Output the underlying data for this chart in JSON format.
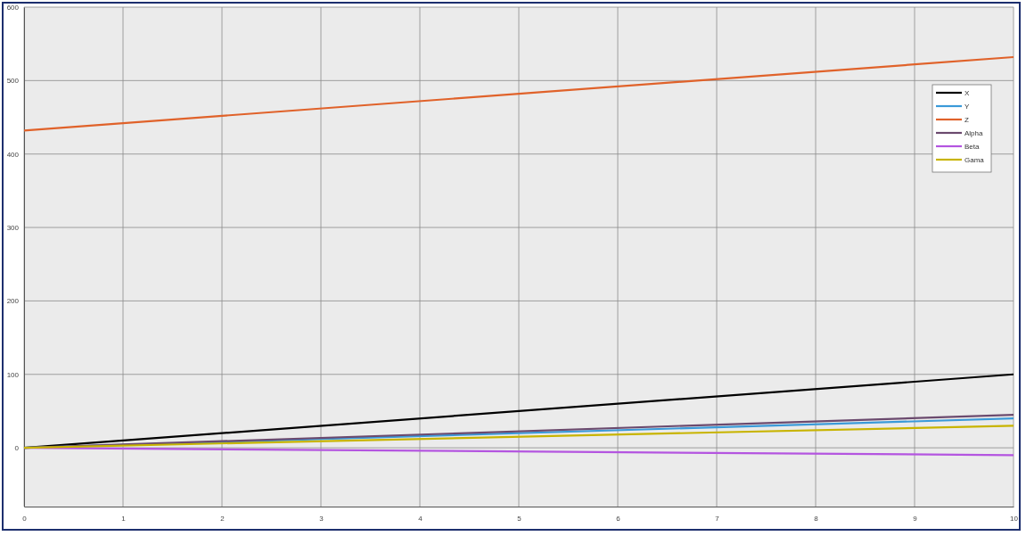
{
  "chart_data": {
    "type": "line",
    "x": [
      0,
      10
    ],
    "series": [
      {
        "name": "X",
        "color": "#000000",
        "values": [
          0,
          100
        ]
      },
      {
        "name": "Y",
        "color": "#3a9ad9",
        "values": [
          0,
          40
        ]
      },
      {
        "name": "Z",
        "color": "#e0622a",
        "values": [
          432,
          532
        ]
      },
      {
        "name": "Alpha",
        "color": "#6b4a6e",
        "values": [
          0,
          45
        ]
      },
      {
        "name": "Beta",
        "color": "#b455e0",
        "values": [
          0,
          -10
        ]
      },
      {
        "name": "Gama",
        "color": "#c8b400",
        "values": [
          0,
          30
        ]
      }
    ],
    "xlim": [
      0,
      10
    ],
    "xticks": [
      0,
      1,
      2,
      3,
      4,
      5,
      6,
      7,
      8,
      9,
      10
    ],
    "ylim": [
      -80,
      600
    ],
    "yticks": [
      0,
      100,
      200,
      300,
      400,
      500,
      600
    ],
    "grid": true,
    "legend": "top right",
    "marker": "none",
    "line_style": "solid"
  }
}
